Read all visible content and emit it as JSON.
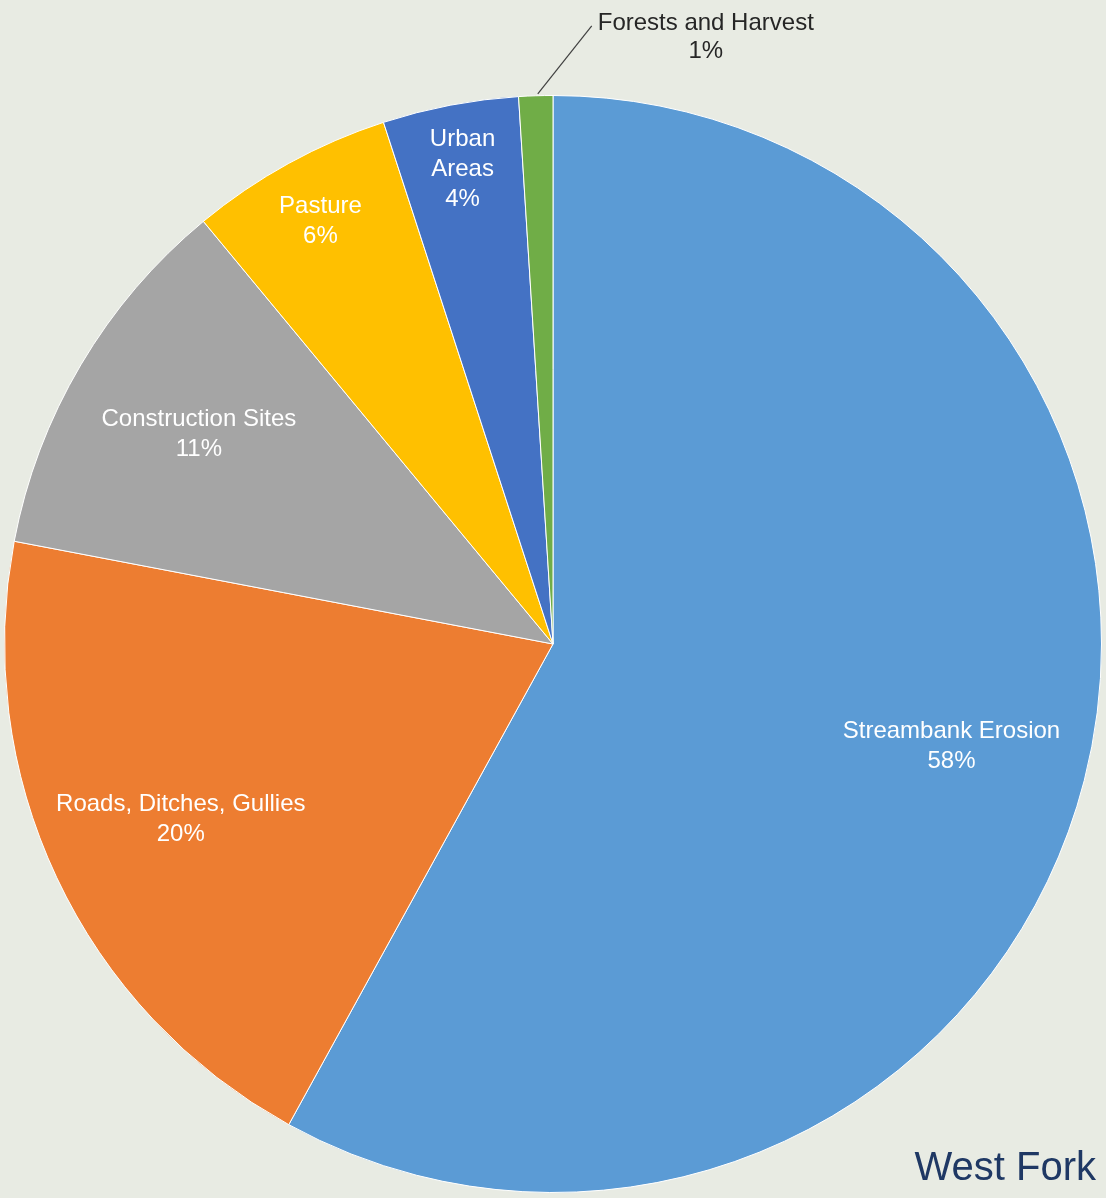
{
  "chart_data": {
    "type": "pie",
    "title": "West Fork",
    "categories": [
      "Streambank Erosion",
      "Roads, Ditches, Gullies",
      "Construction Sites",
      "Pasture",
      "Urban Areas",
      "Forests and Harvest"
    ],
    "values": [
      58,
      20,
      11,
      6,
      4,
      1
    ],
    "value_labels": [
      "58%",
      "20%",
      "11%",
      "6%",
      "4%",
      "1%"
    ],
    "colors": [
      "#5b9bd5",
      "#ed7d31",
      "#a5a5a5",
      "#ffc000",
      "#4472c4",
      "#70ad47"
    ],
    "data_labels": true
  }
}
